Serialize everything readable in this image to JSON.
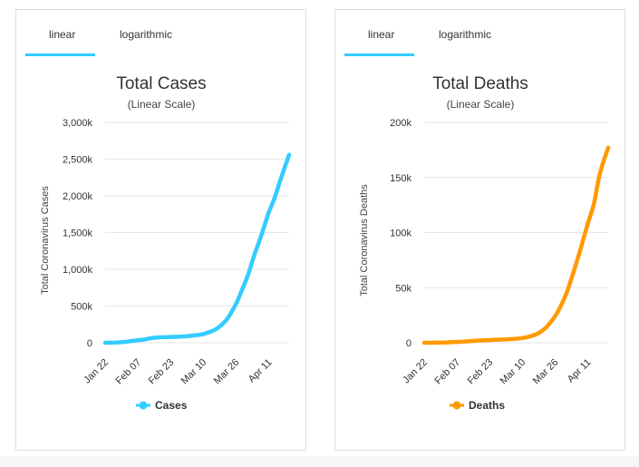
{
  "colors": {
    "cases": "#33ccff",
    "deaths": "#ff9900",
    "grid": "#e6e6e6",
    "tab_underline": "#33ccff"
  },
  "panels": [
    {
      "tabs": [
        {
          "label": "linear",
          "active": true
        },
        {
          "label": "logarithmic",
          "active": false
        }
      ],
      "legend_icon": "circle-line-icon"
    },
    {
      "tabs": [
        {
          "label": "linear",
          "active": true
        },
        {
          "label": "logarithmic",
          "active": false
        }
      ],
      "legend_icon": "circle-line-icon"
    }
  ],
  "chart_data": [
    {
      "type": "line",
      "title": "Total Cases",
      "subtitle": "(Linear Scale)",
      "ylabel": "Total Coronavirus Cases",
      "xlabel": "",
      "x_tick_labels": [
        "Jan 22",
        "Feb 07",
        "Feb 23",
        "Mar 10",
        "Mar 26",
        "Apr 11"
      ],
      "y_tick_labels": [
        "0",
        "500k",
        "1,000k",
        "1,500k",
        "2,000k",
        "2,500k",
        "3,000k"
      ],
      "ylim": [
        0,
        3000000
      ],
      "grid": true,
      "legend": "bottom",
      "series": [
        {
          "name": "Cases",
          "color": "#33ccff",
          "points": [
            [
              "Jan 22",
              600
            ],
            [
              "Jan 27",
              2900
            ],
            [
              "Feb 01",
              12000
            ],
            [
              "Feb 04",
              24500
            ],
            [
              "Feb 07",
              34800
            ],
            [
              "Feb 10",
              43100
            ],
            [
              "Feb 13",
              60400
            ],
            [
              "Feb 16",
              71300
            ],
            [
              "Feb 19",
              75700
            ],
            [
              "Feb 23",
              79300
            ],
            [
              "Feb 27",
              83800
            ],
            [
              "Mar 02",
              90300
            ],
            [
              "Mar 06",
              101800
            ],
            [
              "Mar 10",
              119100
            ],
            [
              "Mar 13",
              146000
            ],
            [
              "Mar 16",
              182000
            ],
            [
              "Mar 19",
              245000
            ],
            [
              "Mar 22",
              337000
            ],
            [
              "Mar 26",
              530000
            ],
            [
              "Mar 29",
              722000
            ],
            [
              "Apr 01",
              933000
            ],
            [
              "Apr 04",
              1200000
            ],
            [
              "Apr 07",
              1430000
            ],
            [
              "Apr 11",
              1770000
            ],
            [
              "Apr 14",
              1980000
            ],
            [
              "Apr 17",
              2240000
            ],
            [
              "Apr 21",
              2560000
            ]
          ]
        }
      ]
    },
    {
      "type": "line",
      "title": "Total Deaths",
      "subtitle": "(Linear Scale)",
      "ylabel": "Total Coronavirus Deaths",
      "xlabel": "",
      "x_tick_labels": [
        "Jan 22",
        "Feb 07",
        "Feb 23",
        "Mar 10",
        "Mar 26",
        "Apr 11"
      ],
      "y_tick_labels": [
        "0",
        "50k",
        "100k",
        "150k",
        "200k"
      ],
      "ylim": [
        0,
        200000
      ],
      "grid": true,
      "legend": "bottom",
      "series": [
        {
          "name": "Deaths",
          "color": "#ff9900",
          "points": [
            [
              "Jan 22",
              17
            ],
            [
              "Jan 27",
              82
            ],
            [
              "Feb 01",
              259
            ],
            [
              "Feb 04",
              492
            ],
            [
              "Feb 07",
              722
            ],
            [
              "Feb 10",
              1013
            ],
            [
              "Feb 13",
              1370
            ],
            [
              "Feb 16",
              1770
            ],
            [
              "Feb 19",
              2120
            ],
            [
              "Feb 23",
              2460
            ],
            [
              "Feb 27",
              2800
            ],
            [
              "Mar 02",
              3080
            ],
            [
              "Mar 06",
              3460
            ],
            [
              "Mar 10",
              4260
            ],
            [
              "Mar 13",
              5400
            ],
            [
              "Mar 16",
              7100
            ],
            [
              "Mar 19",
              10000
            ],
            [
              "Mar 22",
              14600
            ],
            [
              "Mar 26",
              24000
            ],
            [
              "Mar 29",
              34000
            ],
            [
              "Apr 01",
              47000
            ],
            [
              "Apr 04",
              64000
            ],
            [
              "Apr 07",
              82000
            ],
            [
              "Apr 11",
              108000
            ],
            [
              "Apr 14",
              126000
            ],
            [
              "Apr 17",
              154000
            ],
            [
              "Apr 21",
              177000
            ]
          ]
        }
      ]
    }
  ]
}
